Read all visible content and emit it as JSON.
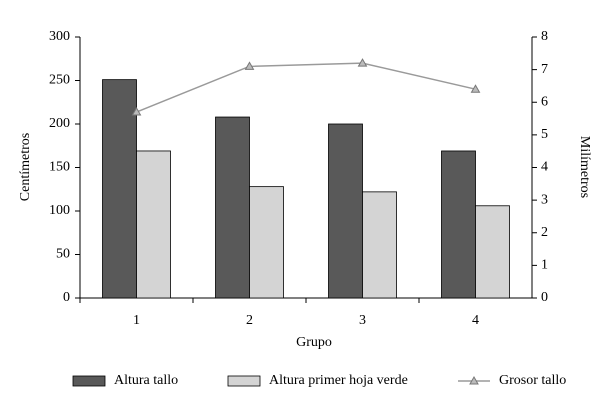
{
  "chart_data": {
    "type": "bar",
    "categories": [
      "1",
      "2",
      "3",
      "4"
    ],
    "x_label": "Grupo",
    "y_label": "Centímetros",
    "y2_label": "Milímetros",
    "ylim": [
      0,
      300
    ],
    "yticks": [
      0,
      50,
      100,
      150,
      200,
      250,
      300
    ],
    "y2lim": [
      0,
      8
    ],
    "y2ticks": [
      0,
      1,
      2,
      3,
      4,
      5,
      6,
      7,
      8
    ],
    "series": [
      {
        "name": "Altura tallo",
        "type": "bar",
        "color": "#595959",
        "values": [
          251,
          208,
          200,
          169
        ]
      },
      {
        "name": "Altura primer hoja verde",
        "type": "bar",
        "color": "#d4d4d4",
        "values": [
          169,
          128,
          122,
          106
        ]
      },
      {
        "name": "Grosor tallo",
        "type": "line",
        "axis": "y2",
        "color": "#9a9a9a",
        "values": [
          5.7,
          7.1,
          7.2,
          6.4
        ]
      }
    ]
  }
}
